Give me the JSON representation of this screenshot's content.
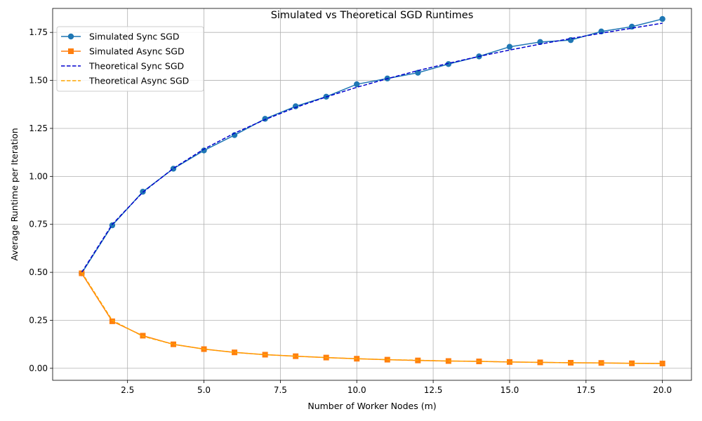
{
  "chart_data": {
    "type": "line",
    "title": "Simulated vs Theoretical SGD Runtimes",
    "xlabel": "Number of Worker Nodes (m)",
    "ylabel": "Average Runtime per Iteration",
    "xlim": [
      0.05,
      20.95
    ],
    "ylim": [
      -0.0625,
      1.875
    ],
    "xticks": [
      2.5,
      5.0,
      7.5,
      10.0,
      12.5,
      15.0,
      17.5,
      20.0
    ],
    "xtick_labels": [
      "2.5",
      "5.0",
      "7.5",
      "10.0",
      "12.5",
      "15.0",
      "17.5",
      "20.0"
    ],
    "yticks": [
      0.0,
      0.25,
      0.5,
      0.75,
      1.0,
      1.25,
      1.5,
      1.75
    ],
    "ytick_labels": [
      "0.00",
      "0.25",
      "0.50",
      "0.75",
      "1.00",
      "1.25",
      "1.50",
      "1.75"
    ],
    "grid": true,
    "legend_position": "top-left",
    "x": [
      1,
      2,
      3,
      4,
      5,
      6,
      7,
      8,
      9,
      10,
      11,
      12,
      13,
      14,
      15,
      16,
      17,
      18,
      19,
      20
    ],
    "series": [
      {
        "name": "Simulated Sync SGD",
        "color": "#1f77b4",
        "line_style": "solid",
        "marker": "circle",
        "values": [
          0.495,
          0.745,
          0.92,
          1.04,
          1.135,
          1.215,
          1.3,
          1.365,
          1.415,
          1.48,
          1.51,
          1.54,
          1.585,
          1.625,
          1.675,
          1.7,
          1.71,
          1.755,
          1.78,
          1.82
        ]
      },
      {
        "name": "Simulated Async SGD",
        "color": "#ff7f0e",
        "line_style": "solid",
        "marker": "square",
        "values": [
          0.495,
          0.245,
          0.17,
          0.125,
          0.1,
          0.083,
          0.071,
          0.063,
          0.056,
          0.05,
          0.045,
          0.041,
          0.038,
          0.036,
          0.033,
          0.031,
          0.029,
          0.028,
          0.026,
          0.025
        ]
      },
      {
        "name": "Theoretical Sync SGD",
        "color": "#0000cd",
        "line_style": "dashed",
        "marker": "none",
        "values": [
          0.5,
          0.75,
          0.917,
          1.042,
          1.142,
          1.225,
          1.296,
          1.359,
          1.414,
          1.464,
          1.509,
          1.551,
          1.589,
          1.625,
          1.658,
          1.689,
          1.718,
          1.746,
          1.772,
          1.798
        ]
      },
      {
        "name": "Theoretical Async SGD",
        "color": "#ffa500",
        "line_style": "dashed",
        "marker": "none",
        "values": [
          0.5,
          0.25,
          0.167,
          0.125,
          0.1,
          0.083,
          0.071,
          0.063,
          0.056,
          0.05,
          0.045,
          0.042,
          0.038,
          0.036,
          0.033,
          0.031,
          0.029,
          0.028,
          0.026,
          0.025
        ]
      }
    ]
  }
}
